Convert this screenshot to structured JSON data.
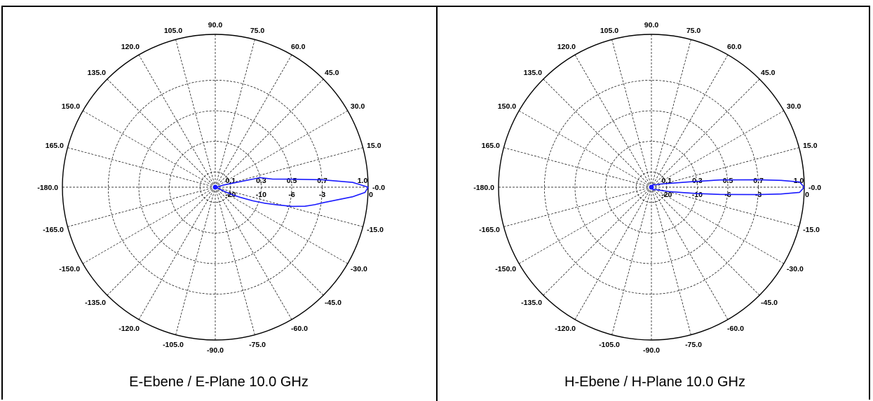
{
  "chart_data": [
    {
      "type": "polar-line",
      "caption": "E-Ebene / E-Plane 10.0 GHz",
      "angle_ticks": [
        "90.0",
        "75.0",
        "60.0",
        "45.0",
        "30.0",
        "15.0",
        "-0.0",
        "-15.0",
        "-30.0",
        "-45.0",
        "-60.0",
        "-75.0",
        "-90.0",
        "-105.0",
        "-120.0",
        "-135.0",
        "-150.0",
        "-165.0",
        "-180.0",
        "165.0",
        "150.0",
        "135.0",
        "120.0",
        "105.0"
      ],
      "angle_tick_values": [
        90,
        75,
        60,
        45,
        30,
        15,
        0,
        -15,
        -30,
        -45,
        -60,
        -75,
        -90,
        -105,
        -120,
        -135,
        -150,
        -165,
        -180,
        165,
        150,
        135,
        120,
        105
      ],
      "linear_ticks": [
        "0.1",
        "0.3",
        "0.5",
        "0.7",
        "1.0"
      ],
      "linear_tick_values": [
        0.1,
        0.3,
        0.5,
        0.7,
        1.0
      ],
      "db_ticks": [
        "-20",
        "-10",
        "-6",
        "-3",
        "0"
      ],
      "db_tick_values": [
        -20,
        -10,
        -6,
        -3,
        0
      ],
      "radial_range": [
        0,
        1.0
      ],
      "grid": true,
      "series": [
        {
          "color": "#1a1aff",
          "angle_deg": [
            0,
            -2,
            -4,
            -6,
            -8,
            -10,
            -12,
            -14,
            -16,
            -18,
            -20,
            -22,
            -24,
            -25,
            -22,
            -10,
            0,
            10,
            15,
            12,
            8,
            6,
            4,
            2,
            0
          ],
          "r": [
            1.0,
            0.98,
            0.9,
            0.8,
            0.72,
            0.66,
            0.6,
            0.52,
            0.42,
            0.34,
            0.26,
            0.18,
            0.12,
            0.06,
            0.02,
            0.01,
            0.01,
            0.02,
            0.05,
            0.3,
            0.38,
            0.5,
            0.7,
            0.9,
            1.0
          ]
        }
      ]
    },
    {
      "type": "polar-line",
      "caption": "H-Ebene / H-Plane 10.0 GHz",
      "angle_ticks": [
        "90.0",
        "75.0",
        "60.0",
        "45.0",
        "30.0",
        "15.0",
        "-0.0",
        "-15.0",
        "-30.0",
        "-45.0",
        "-60.0",
        "-75.0",
        "-90.0",
        "-105.0",
        "-120.0",
        "-135.0",
        "-150.0",
        "-165.0",
        "-180.0",
        "165.0",
        "150.0",
        "135.0",
        "120.0",
        "105.0"
      ],
      "angle_tick_values": [
        90,
        75,
        60,
        45,
        30,
        15,
        0,
        -15,
        -30,
        -45,
        -60,
        -75,
        -90,
        -105,
        -120,
        -135,
        -150,
        -165,
        -180,
        165,
        150,
        135,
        120,
        105
      ],
      "linear_ticks": [
        "0.1",
        "0.3",
        "0.5",
        "0.7",
        "1.0"
      ],
      "linear_tick_values": [
        0.1,
        0.3,
        0.5,
        0.7,
        1.0
      ],
      "db_ticks": [
        "-20",
        "-10",
        "-6",
        "-3",
        "0"
      ],
      "db_tick_values": [
        -20,
        -10,
        -6,
        -3,
        0
      ],
      "radial_range": [
        0,
        1.0
      ],
      "grid": true,
      "series": [
        {
          "color": "#1a1aff",
          "angle_deg": [
            0,
            -2,
            -3,
            -4,
            -5,
            -6,
            -8,
            -10,
            -14,
            -20,
            -30,
            -60,
            0,
            60,
            30,
            20,
            12,
            8,
            6,
            4,
            3,
            2,
            0
          ],
          "r": [
            1.0,
            0.97,
            0.85,
            0.7,
            0.55,
            0.45,
            0.3,
            0.2,
            0.12,
            0.06,
            0.03,
            0.02,
            0.01,
            0.02,
            0.03,
            0.06,
            0.12,
            0.25,
            0.45,
            0.7,
            0.85,
            0.97,
            1.0
          ]
        }
      ]
    }
  ]
}
